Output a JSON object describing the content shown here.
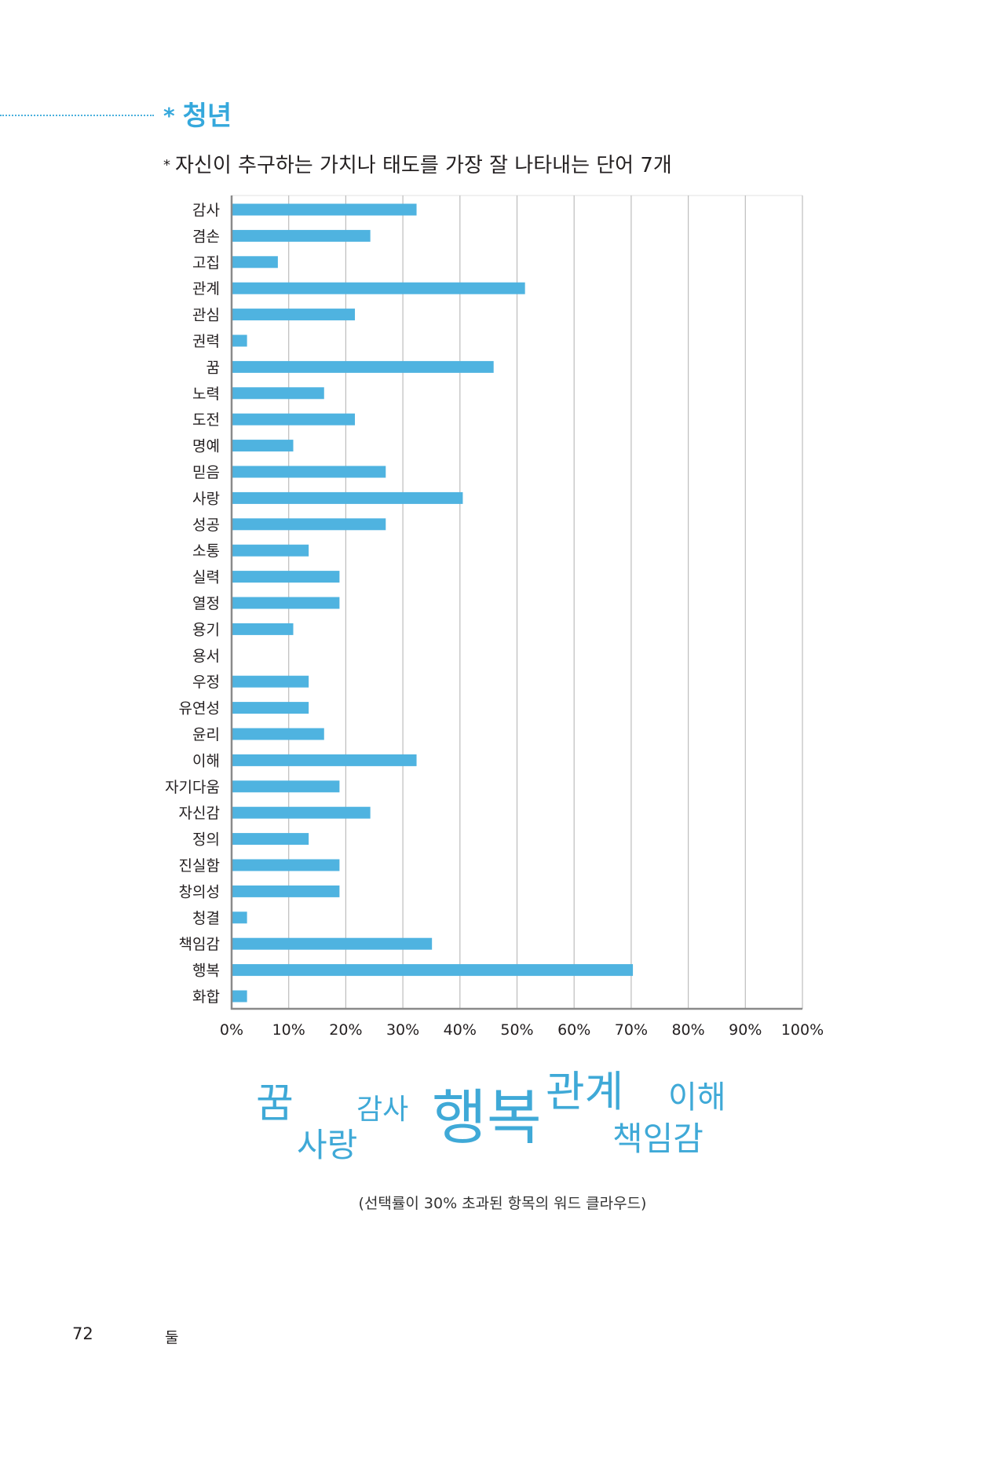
{
  "header": {
    "section_marker": "*",
    "section_title": "청년",
    "subtitle_marker": "*",
    "subtitle": "자신이 추구하는 가치나 태도를 가장 잘 나타내는 단어 7개"
  },
  "colors": {
    "accent": "#35a8dc",
    "bar": "#4fb3e0",
    "grid": "#bdbdbd",
    "axis": "#8a8a8a"
  },
  "chart_data": {
    "type": "bar",
    "orientation": "horizontal",
    "title": "",
    "xlabel": "",
    "ylabel": "",
    "categories": [
      "감사",
      "겸손",
      "고집",
      "관계",
      "관심",
      "권력",
      "꿈",
      "노력",
      "도전",
      "명예",
      "믿음",
      "사랑",
      "성공",
      "소통",
      "실력",
      "열정",
      "용기",
      "용서",
      "우정",
      "유연성",
      "윤리",
      "이해",
      "자기다움",
      "자신감",
      "정의",
      "진실함",
      "창의성",
      "청결",
      "책임감",
      "행복",
      "화합"
    ],
    "values": [
      32.4,
      24.3,
      8.1,
      51.4,
      21.6,
      2.7,
      45.9,
      16.2,
      21.6,
      10.8,
      27.0,
      40.5,
      27.0,
      13.5,
      18.9,
      18.9,
      10.8,
      0,
      13.5,
      13.5,
      16.2,
      32.4,
      18.9,
      24.3,
      13.5,
      18.9,
      18.9,
      2.7,
      35.1,
      70.3,
      2.7
    ],
    "unit": "%",
    "xlim": [
      0,
      100
    ],
    "xticks": [
      "0%",
      "10%",
      "20%",
      "30%",
      "40%",
      "50%",
      "60%",
      "70%",
      "80%",
      "90%",
      "100%"
    ],
    "grid": true,
    "legend": "none"
  },
  "word_cloud": {
    "words": [
      "꿈",
      "감사",
      "사랑",
      "행복",
      "관계",
      "이해",
      "책임감"
    ],
    "caption": "(선택률이 30% 초과된 항목의 워드 클라우드)"
  },
  "footer": {
    "page_number": "72",
    "running_title": "둘"
  }
}
